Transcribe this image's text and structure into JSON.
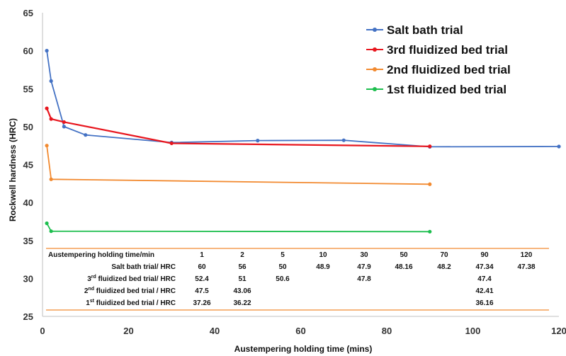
{
  "chart_data": {
    "type": "line",
    "xlabel": "Austempering holding time (mins)",
    "ylabel": "Rockwell hardness (HRC)",
    "xlim": [
      0,
      120
    ],
    "ylim": [
      25,
      65
    ],
    "x_ticks": [
      "0",
      "20",
      "40",
      "60",
      "80",
      "100",
      "120"
    ],
    "y_ticks": [
      "25",
      "30",
      "35",
      "40",
      "45",
      "50",
      "55",
      "60",
      "65"
    ],
    "grid": false,
    "legend_position": "top-right",
    "series": [
      {
        "name": "Salt bath trial",
        "color": "#4472C4",
        "x": [
          1,
          2,
          5,
          10,
          30,
          50,
          70,
          90,
          120
        ],
        "y": [
          60,
          56,
          50,
          48.9,
          47.9,
          48.16,
          48.2,
          47.34,
          47.38
        ]
      },
      {
        "name": "3rd fluidized bed trial",
        "color": "#E8161E",
        "x": [
          1,
          2,
          5,
          30,
          90
        ],
        "y": [
          52.4,
          51,
          50.6,
          47.8,
          47.4
        ]
      },
      {
        "name": "2nd fluidized bed trial",
        "color": "#F28A30",
        "x": [
          1,
          2,
          90
        ],
        "y": [
          47.5,
          43.06,
          42.41
        ]
      },
      {
        "name": "1st fluidized bed trial",
        "color": "#1DBE4E",
        "x": [
          1,
          2,
          90
        ],
        "y": [
          37.26,
          36.22,
          36.16
        ]
      }
    ],
    "table": {
      "rule_color": "#F28A30",
      "header_label": "Austempering holding time/min",
      "columns": [
        "1",
        "2",
        "5",
        "10",
        "30",
        "50",
        "70",
        "90",
        "120"
      ],
      "rows": [
        {
          "label": "Salt bath trial/ HRC",
          "ord": "",
          "label_rest": "",
          "values": [
            "60",
            "56",
            "50",
            "48.9",
            "47.9",
            "48.16",
            "48.2",
            "47.34",
            "47.38"
          ]
        },
        {
          "label": "3",
          "ord": "rd",
          "label_rest": " fluidized bed trial/ HRC",
          "values": [
            "52.4",
            "51",
            "50.6",
            "",
            "47.8",
            "",
            "",
            "47.4",
            ""
          ]
        },
        {
          "label": "2",
          "ord": "nd",
          "label_rest": " fluidized bed trial / HRC",
          "values": [
            "47.5",
            "43.06",
            "",
            "",
            "",
            "",
            "",
            "42.41",
            ""
          ]
        },
        {
          "label": "1",
          "ord": "st",
          "label_rest": " fluidized bed trial / HRC",
          "values": [
            "37.26",
            "36.22",
            "",
            "",
            "",
            "",
            "",
            "36.16",
            ""
          ]
        }
      ]
    }
  }
}
